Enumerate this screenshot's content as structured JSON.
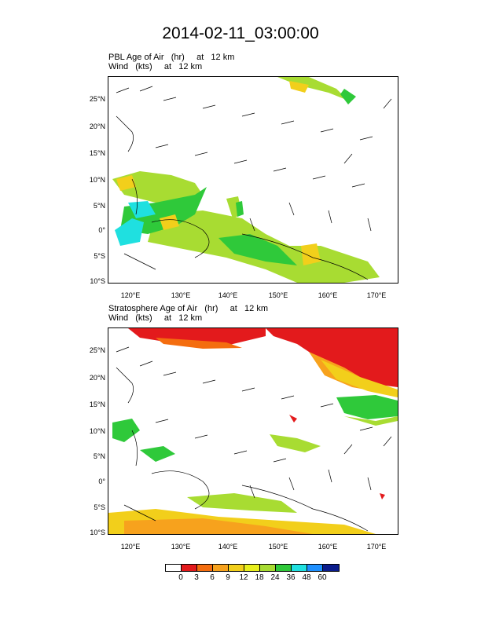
{
  "title": "2014-02-11_03:00:00",
  "panels": [
    {
      "line1": "PBL Age of Air   (hr)     at   12 km",
      "line2": "Wind   (kts)     at   12 km"
    },
    {
      "line1": "Stratosphere Age of Air   (hr)     at   12 km",
      "line2": "Wind   (kts)     at   12 km"
    }
  ],
  "axes": {
    "lat_labels": [
      "25°N",
      "20°N",
      "15°N",
      "10°N",
      "5°N",
      "0°",
      "5°S",
      "10°S"
    ],
    "lon_labels": [
      "120°E",
      "130°E",
      "140°E",
      "150°E",
      "160°E",
      "170°E"
    ]
  },
  "colorbar": {
    "labels": [
      "0",
      "3",
      "6",
      "9",
      "12",
      "18",
      "24",
      "36",
      "48",
      "60"
    ],
    "colors": [
      "#ffffff",
      "#e31a1c",
      "#f46d0f",
      "#f7a21d",
      "#f2cf1b",
      "#e8ef1c",
      "#a8dc32",
      "#2fc93a",
      "#1fe0e0",
      "#1e90ff",
      "#0b1c8c"
    ]
  }
}
